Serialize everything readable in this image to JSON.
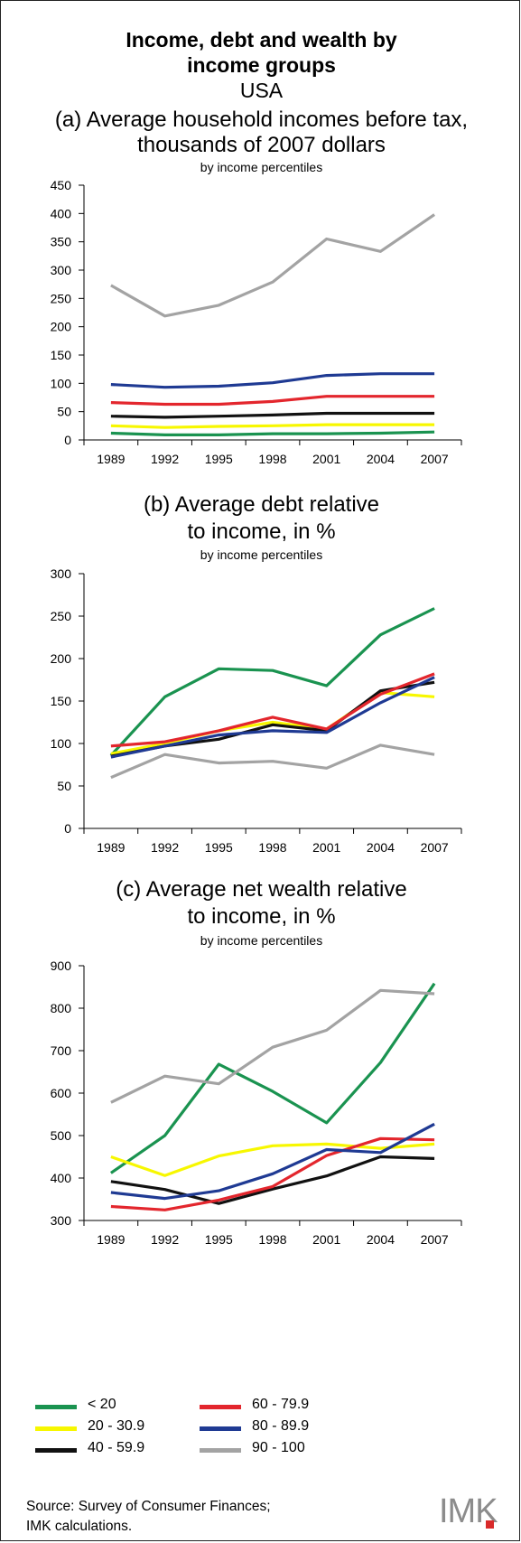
{
  "header": {
    "title_line1": "Income, debt and wealth by",
    "title_line2": "income groups",
    "subtitle": "USA"
  },
  "colors": {
    "lt20": "#1a9350",
    "p20_39": "#f7f700",
    "p40_59": "#111111",
    "p60_79": "#e3262d",
    "p80_89": "#1f3a93",
    "p90_100": "#a3a3a3"
  },
  "chart_data": [
    {
      "type": "line",
      "title_line1": "(a) Average household incomes before tax,",
      "title_line2": "thousands of 2007 dollars",
      "note": "by income percentiles",
      "x": [
        "1989",
        "1992",
        "1995",
        "1998",
        "2001",
        "2004",
        "2007"
      ],
      "ylim": [
        0,
        450
      ],
      "yticks": [
        "0",
        "50",
        "100",
        "150",
        "200",
        "250",
        "300",
        "350",
        "400",
        "450"
      ],
      "series": [
        {
          "name": "< 20",
          "color": "#1a9350",
          "values": [
            12,
            9,
            9,
            11,
            11,
            12,
            14
          ]
        },
        {
          "name": "20 - 30.9",
          "color": "#f7f700",
          "values": [
            25,
            22,
            24,
            25,
            27,
            27,
            27
          ]
        },
        {
          "name": "40 - 59.9",
          "color": "#111111",
          "values": [
            42,
            40,
            42,
            44,
            47,
            47,
            47
          ]
        },
        {
          "name": "60 - 79.9",
          "color": "#e3262d",
          "values": [
            66,
            63,
            63,
            68,
            77,
            77,
            77
          ]
        },
        {
          "name": "80 - 89.9",
          "color": "#1f3a93",
          "values": [
            98,
            93,
            95,
            101,
            114,
            117,
            117
          ]
        },
        {
          "name": "90 - 100",
          "color": "#a3a3a3",
          "values": [
            273,
            219,
            238,
            279,
            355,
            333,
            398
          ]
        }
      ]
    },
    {
      "type": "line",
      "title_line1": "(b) Average debt relative",
      "title_line2": "to income, in %",
      "note": "by income percentiles",
      "x": [
        "1989",
        "1992",
        "1995",
        "1998",
        "2001",
        "2004",
        "2007"
      ],
      "ylim": [
        0,
        300
      ],
      "yticks": [
        "0",
        "50",
        "100",
        "150",
        "200",
        "250",
        "300"
      ],
      "series": [
        {
          "name": "< 20",
          "color": "#1a9350",
          "values": [
            86,
            155,
            188,
            186,
            168,
            228,
            259
          ]
        },
        {
          "name": "20 - 30.9",
          "color": "#f7f700",
          "values": [
            88,
            100,
            115,
            125,
            117,
            160,
            155
          ]
        },
        {
          "name": "40 - 59.9",
          "color": "#111111",
          "values": [
            85,
            97,
            105,
            122,
            115,
            162,
            172
          ]
        },
        {
          "name": "60 - 79.9",
          "color": "#e3262d",
          "values": [
            97,
            102,
            115,
            131,
            117,
            158,
            182
          ]
        },
        {
          "name": "80 - 89.9",
          "color": "#1f3a93",
          "values": [
            84,
            97,
            110,
            115,
            113,
            148,
            178
          ]
        },
        {
          "name": "90 - 100",
          "color": "#a3a3a3",
          "values": [
            60,
            87,
            77,
            79,
            71,
            98,
            87
          ]
        }
      ]
    },
    {
      "type": "line",
      "title_line1": "(c) Average net wealth relative",
      "title_line2": "to income, in %",
      "note": "by income percentiles",
      "x": [
        "1989",
        "1992",
        "1995",
        "1998",
        "2001",
        "2004",
        "2007"
      ],
      "ylim": [
        300,
        900
      ],
      "yticks": [
        "300",
        "400",
        "500",
        "600",
        "700",
        "800",
        "900"
      ],
      "series": [
        {
          "name": "< 20",
          "color": "#1a9350",
          "values": [
            412,
            500,
            668,
            604,
            530,
            672,
            858
          ]
        },
        {
          "name": "20 - 30.9",
          "color": "#f7f700",
          "values": [
            450,
            406,
            452,
            476,
            480,
            470,
            480
          ]
        },
        {
          "name": "40 - 59.9",
          "color": "#111111",
          "values": [
            392,
            373,
            340,
            374,
            405,
            450,
            446
          ]
        },
        {
          "name": "60 - 79.9",
          "color": "#e3262d",
          "values": [
            333,
            325,
            348,
            380,
            453,
            493,
            490
          ]
        },
        {
          "name": "80 - 89.9",
          "color": "#1f3a93",
          "values": [
            366,
            352,
            370,
            410,
            467,
            460,
            527
          ]
        },
        {
          "name": "90 - 100",
          "color": "#a3a3a3",
          "values": [
            578,
            640,
            622,
            708,
            748,
            842,
            834
          ]
        }
      ]
    }
  ],
  "legend": [
    {
      "label": "< 20",
      "color": "#1a9350"
    },
    {
      "label": "20 - 30.9",
      "color": "#f7f700"
    },
    {
      "label": "40 - 59.9",
      "color": "#111111"
    },
    {
      "label": "60 - 79.9",
      "color": "#e3262d"
    },
    {
      "label": "80 - 89.9",
      "color": "#1f3a93"
    },
    {
      "label": "90 - 100",
      "color": "#a3a3a3"
    }
  ],
  "footer": {
    "source_line1": "Source: Survey of Consumer Finances;",
    "source_line2": "IMK calculations.",
    "logo_text": "IMK"
  }
}
